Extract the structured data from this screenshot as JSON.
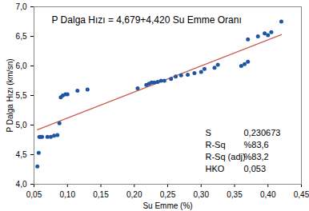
{
  "chart_data": {
    "type": "scatter",
    "title": "P Dalga Hızı = 4,679+4,420 Su Emme Oranı",
    "x_label": "Su Emme (%)",
    "y_label": "P Dalga Hızı (km/sn)",
    "x": [
      0.055,
      0.057,
      0.058,
      0.06,
      0.062,
      0.07,
      0.075,
      0.08,
      0.085,
      0.088,
      0.09,
      0.093,
      0.097,
      0.1,
      0.115,
      0.13,
      0.205,
      0.218,
      0.222,
      0.226,
      0.23,
      0.235,
      0.24,
      0.245,
      0.255,
      0.262,
      0.27,
      0.28,
      0.29,
      0.3,
      0.305,
      0.32,
      0.325,
      0.36,
      0.365,
      0.37,
      0.37,
      0.385,
      0.395,
      0.4,
      0.405,
      0.42
    ],
    "values": [
      4.3,
      4.53,
      4.8,
      4.8,
      4.8,
      4.8,
      4.8,
      4.82,
      4.83,
      5.03,
      5.47,
      5.5,
      5.52,
      5.52,
      5.58,
      5.6,
      5.62,
      5.68,
      5.7,
      5.72,
      5.72,
      5.73,
      5.75,
      5.75,
      5.78,
      5.82,
      5.84,
      5.85,
      5.88,
      5.9,
      5.95,
      5.97,
      6.02,
      6.0,
      6.03,
      6.07,
      6.45,
      6.5,
      6.55,
      6.52,
      6.57,
      6.75
    ],
    "color": "#1f56a3",
    "marker": "circle",
    "fit_line": {
      "type": "line",
      "x": [
        0.055,
        0.42
      ],
      "values": [
        4.92,
        6.53
      ],
      "color": "#c8604f"
    },
    "stats": [
      {
        "label": "S",
        "value": "0,230673"
      },
      {
        "label": "R-Sq",
        "value": "%83,6"
      },
      {
        "label": "R-Sq (adj)",
        "value": "%83,2"
      },
      {
        "label": "HKO",
        "value": "0,053"
      }
    ],
    "xlim": [
      0.05,
      0.45
    ],
    "xticks": [
      {
        "value": 0.05,
        "label": "0,05"
      },
      {
        "value": 0.1,
        "label": "0,10"
      },
      {
        "value": 0.15,
        "label": "0,15"
      },
      {
        "value": 0.2,
        "label": "0,20"
      },
      {
        "value": 0.25,
        "label": "0,25"
      },
      {
        "value": 0.3,
        "label": "0,30"
      },
      {
        "value": 0.35,
        "label": "0,35"
      },
      {
        "value": 0.4,
        "label": "0,40"
      },
      {
        "value": 0.45,
        "label": "0,45"
      }
    ],
    "ylim": [
      4.0,
      7.0
    ],
    "yticks": [
      {
        "value": 4.0,
        "label": "4,0"
      },
      {
        "value": 4.5,
        "label": "4,5"
      },
      {
        "value": 5.0,
        "label": "5,0"
      },
      {
        "value": 5.5,
        "label": "5,5"
      },
      {
        "value": 6.0,
        "label": "6,0"
      },
      {
        "value": 6.5,
        "label": "6,5"
      },
      {
        "value": 7.0,
        "label": "7,0"
      }
    ],
    "grid": false
  }
}
